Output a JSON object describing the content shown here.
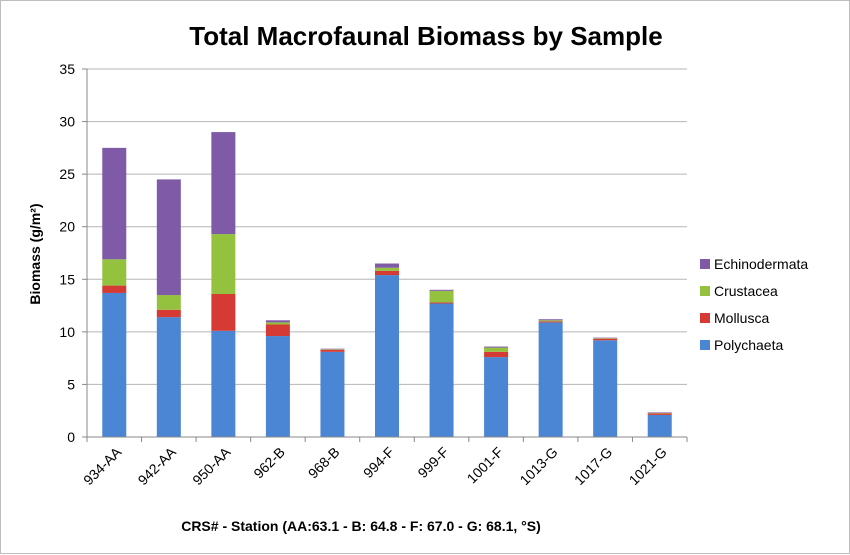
{
  "chart_data": {
    "type": "bar",
    "stacked": true,
    "title": "Total Macrofaunal Biomass by Sample",
    "xlabel": "CRS# - Station (AA:63.1 - B: 64.8 - F: 67.0 - G: 68.1, °S)",
    "ylabel": "Biomass (g/m²)",
    "ylim": [
      0,
      35
    ],
    "yticks": [
      0,
      5,
      10,
      15,
      20,
      25,
      30,
      35
    ],
    "grid": true,
    "legend_position": "right",
    "categories": [
      "934-AA",
      "942-AA",
      "950-AA",
      "962-B",
      "968-B",
      "994-F",
      "999-F",
      "1001-F",
      "1013-G",
      "1017-G",
      "1021-G"
    ],
    "series": [
      {
        "name": "Polychaeta",
        "color": "#4a86d4",
        "values": [
          13.7,
          11.4,
          10.1,
          9.6,
          8.1,
          15.4,
          12.7,
          7.6,
          10.9,
          9.2,
          2.1
        ]
      },
      {
        "name": "Mollusca",
        "color": "#d63a35",
        "values": [
          0.7,
          0.7,
          3.5,
          1.1,
          0.2,
          0.4,
          0.1,
          0.5,
          0.1,
          0.15,
          0.15
        ]
      },
      {
        "name": "Crustacea",
        "color": "#94c13e",
        "values": [
          2.5,
          1.4,
          5.7,
          0.2,
          0.05,
          0.3,
          1.1,
          0.4,
          0.1,
          0.05,
          0.05
        ]
      },
      {
        "name": "Echinodermata",
        "color": "#7f5aa7",
        "values": [
          10.6,
          11.0,
          9.7,
          0.2,
          0.05,
          0.4,
          0.1,
          0.1,
          0.1,
          0.05,
          0.05
        ]
      }
    ]
  }
}
